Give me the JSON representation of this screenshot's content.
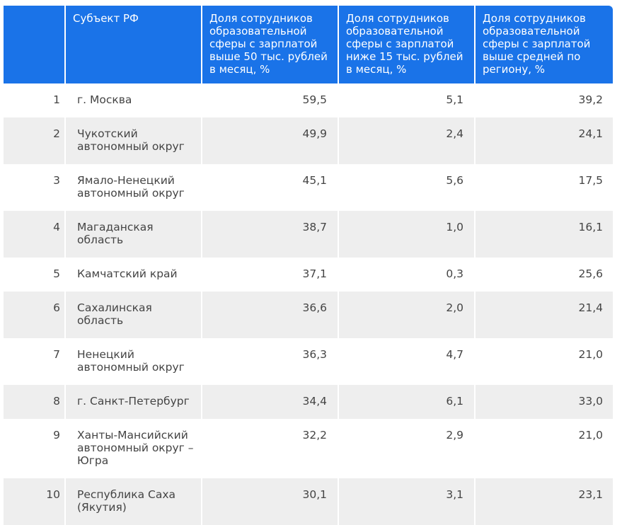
{
  "table": {
    "headers": [
      "",
      "Субъект РФ",
      "Доля сотрудников образовательной сферы с зарплатой выше 50 тыс. рублей в месяц, %",
      "Доля сотрудников образовательной сферы с зарплатой ниже 15 тыс. рублей в месяц, %",
      "Доля сотрудников образовательной сферы с зарплатой выше средней по региону, %"
    ],
    "rows": [
      [
        "1",
        "г. Москва",
        "59,5",
        "5,1",
        "39,2"
      ],
      [
        "2",
        "Чукотский автономный округ",
        "49,9",
        "2,4",
        "24,1"
      ],
      [
        "3",
        "Ямало-Ненецкий автономный округ",
        "45,1",
        "5,6",
        "17,5"
      ],
      [
        "4",
        "Магаданская область",
        "38,7",
        "1,0",
        "16,1"
      ],
      [
        "5",
        "Камчатский край",
        "37,1",
        "0,3",
        "25,6"
      ],
      [
        "6",
        "Сахалинская область",
        "36,6",
        "2,0",
        "21,4"
      ],
      [
        "7",
        "Ненецкий автономный округ",
        "36,3",
        "4,7",
        "21,0"
      ],
      [
        "8",
        "г. Санкт-Петербург",
        "34,4",
        "6,1",
        "33,0"
      ],
      [
        "9",
        "Ханты-Мансийский автономный округ – Югра",
        "32,2",
        "2,9",
        "21,0"
      ],
      [
        "10",
        "Республика Саха (Якутия)",
        "30,1",
        "3,1",
        "23,1"
      ]
    ]
  },
  "colors": {
    "header_bg": "#1a73e8",
    "header_text": "#ffffff",
    "row_shade": "#eeeeee",
    "body_text": "#444444"
  }
}
